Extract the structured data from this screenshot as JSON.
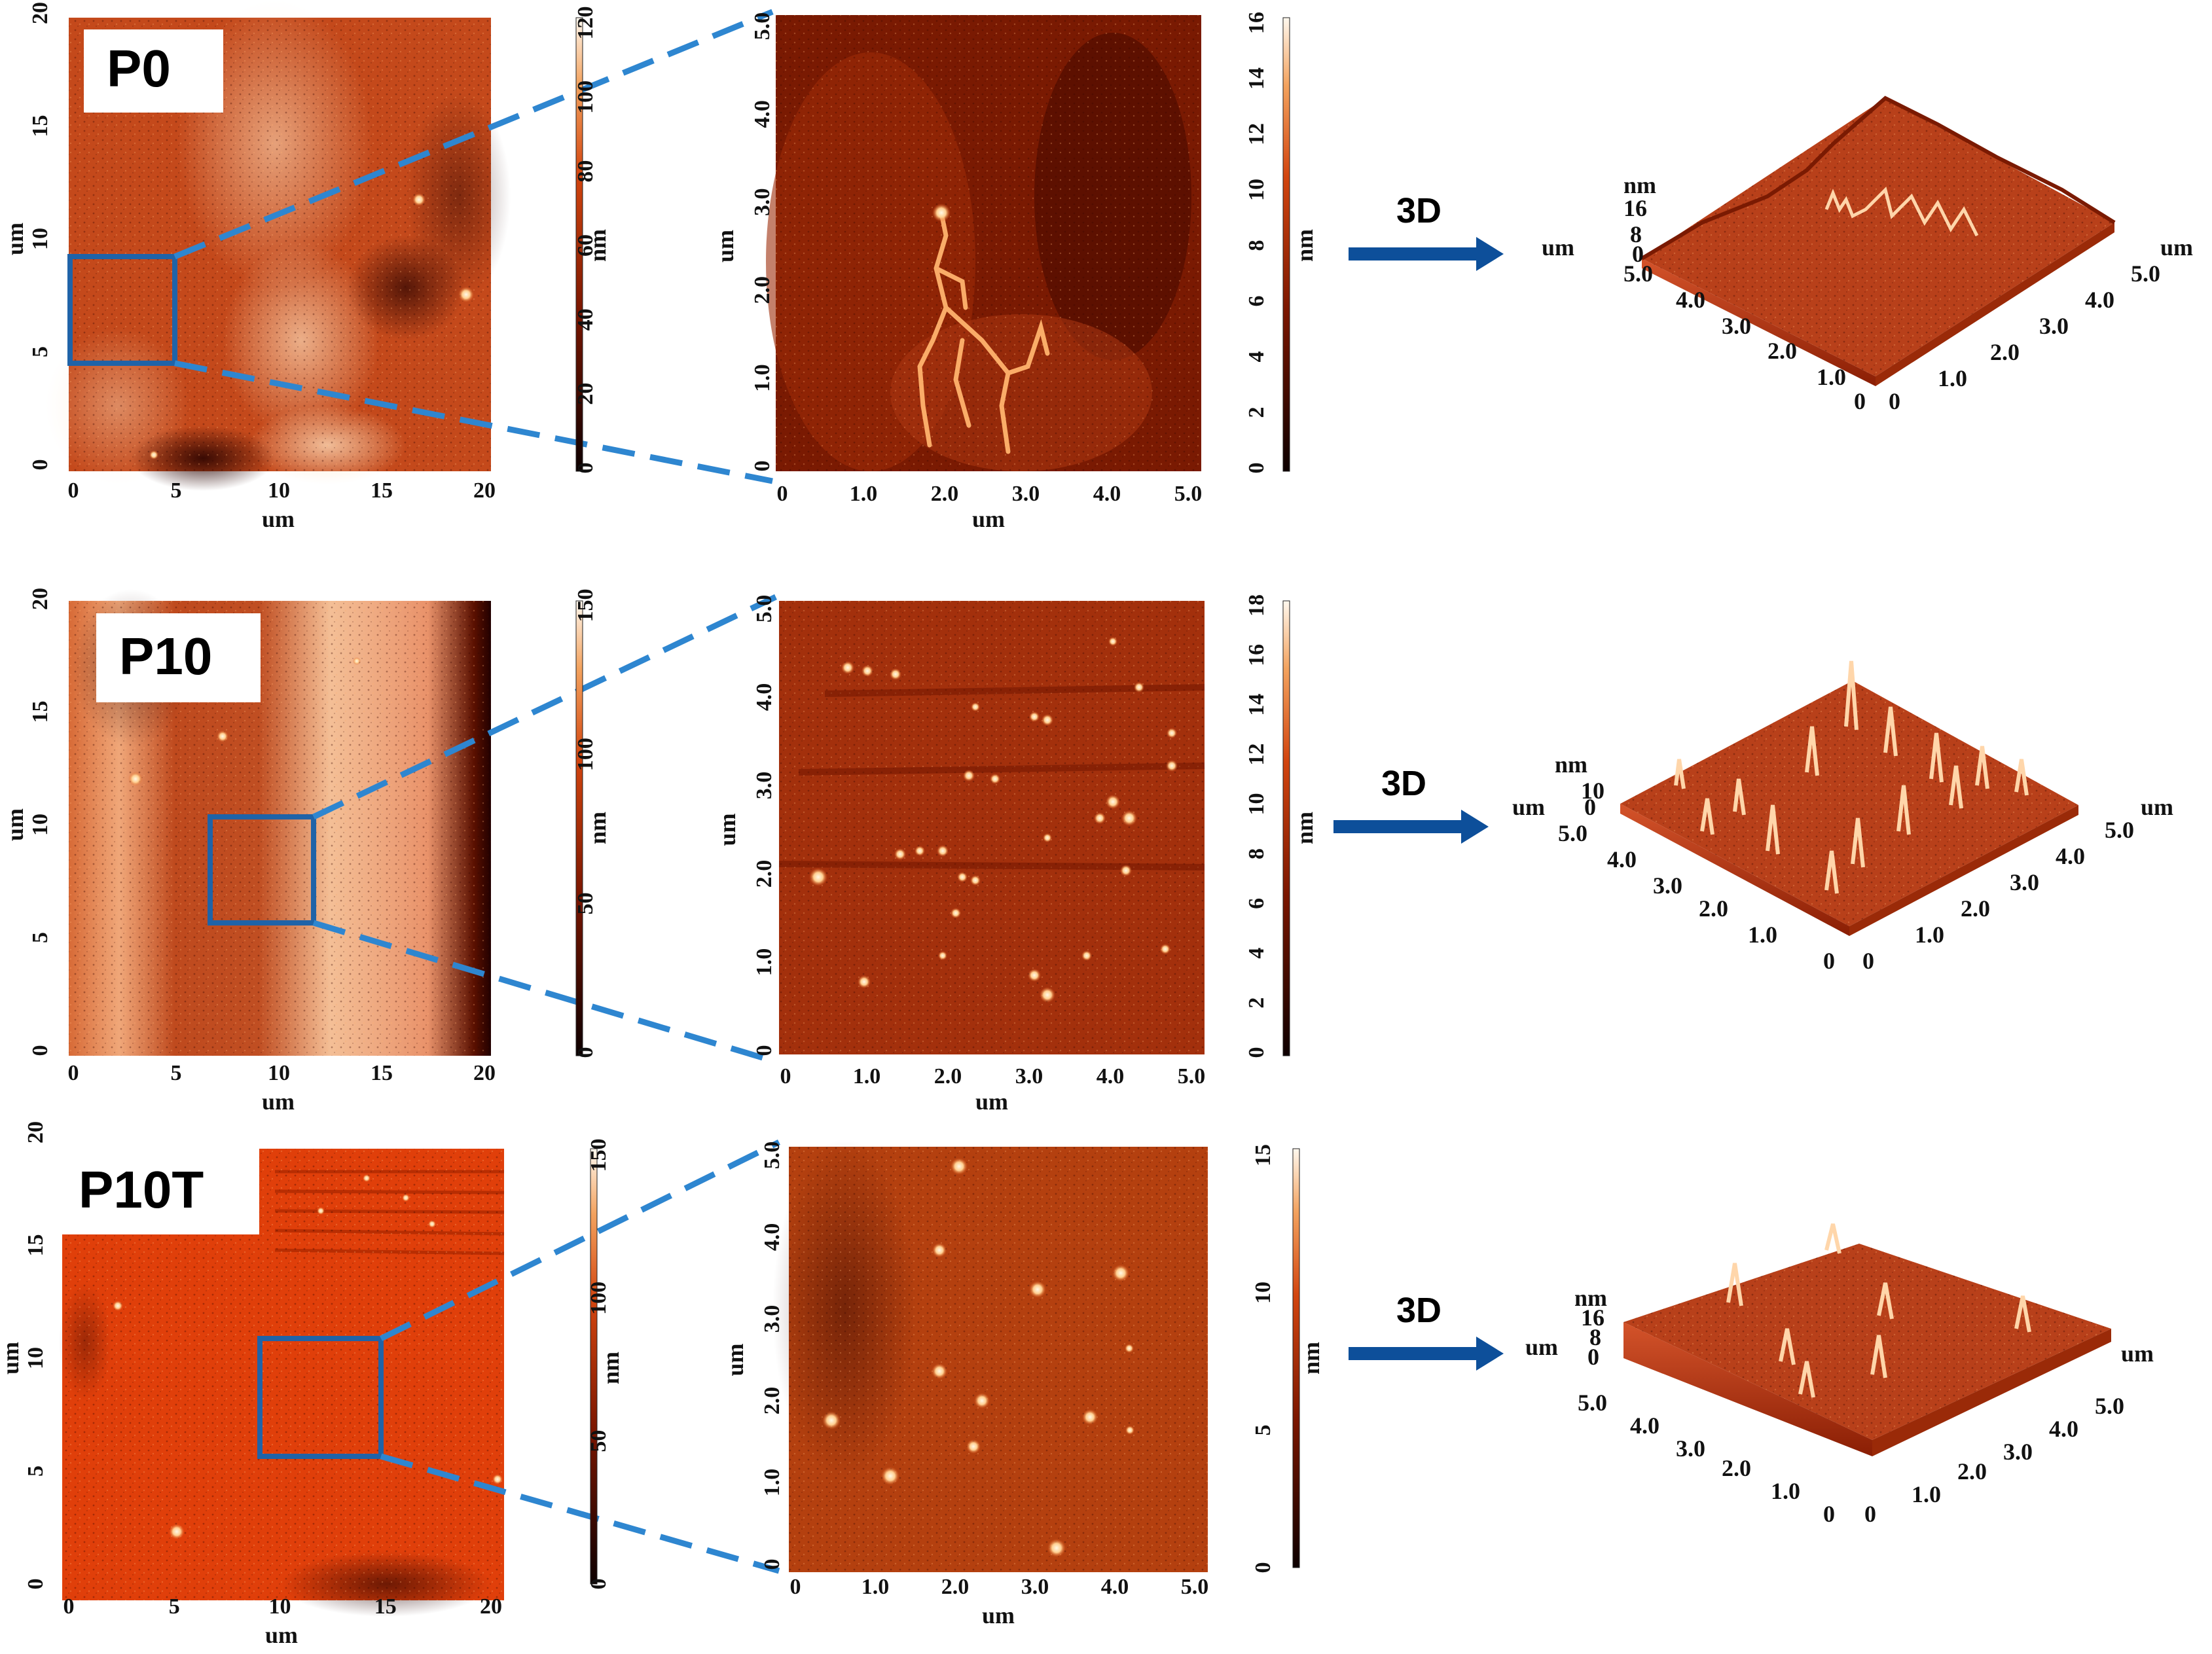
{
  "rows": [
    {
      "sample": "P0",
      "large": {
        "x_ticks": [
          "0",
          "5",
          "10",
          "15",
          "20"
        ],
        "y_ticks": [
          "0",
          "5",
          "10",
          "15",
          "20"
        ],
        "x_unit": "um",
        "y_unit": "um"
      },
      "large_bar": {
        "ticks": [
          "0",
          "20",
          "40",
          "60",
          "80",
          "100",
          "120"
        ],
        "unit": "nm"
      },
      "zoom": {
        "x_ticks": [
          "0",
          "1.0",
          "2.0",
          "3.0",
          "4.0",
          "5.0"
        ],
        "y_ticks": [
          "0",
          "1.0",
          "2.0",
          "3.0",
          "4.0",
          "5.0"
        ],
        "x_unit": "um",
        "y_unit": "um"
      },
      "zoom_bar": {
        "ticks": [
          "0",
          "2",
          "4",
          "6",
          "8",
          "10",
          "12",
          "14",
          "16"
        ],
        "unit": "nm"
      },
      "arrow_label": "3D",
      "surface": {
        "z_unit": "nm",
        "z_ticks": [
          "16",
          "8",
          "0"
        ],
        "left_unit": "um",
        "right_unit": "um",
        "left_ticks": [
          "5.0",
          "4.0",
          "3.0",
          "2.0",
          "1.0",
          "0"
        ],
        "right_ticks": [
          "0",
          "1.0",
          "2.0",
          "3.0",
          "4.0",
          "5.0"
        ]
      }
    },
    {
      "sample": "P10",
      "large": {
        "x_ticks": [
          "0",
          "5",
          "10",
          "15",
          "20"
        ],
        "y_ticks": [
          "0",
          "5",
          "10",
          "15",
          "20"
        ],
        "x_unit": "um",
        "y_unit": "um"
      },
      "large_bar": {
        "ticks": [
          "0",
          "50",
          "100",
          "150"
        ],
        "unit": "nm"
      },
      "zoom": {
        "x_ticks": [
          "0",
          "1.0",
          "2.0",
          "3.0",
          "4.0",
          "5.0"
        ],
        "y_ticks": [
          "0",
          "1.0",
          "2.0",
          "3.0",
          "4.0",
          "5.0"
        ],
        "x_unit": "um",
        "y_unit": "um"
      },
      "zoom_bar": {
        "ticks": [
          "0",
          "2",
          "4",
          "6",
          "8",
          "10",
          "12",
          "14",
          "16",
          "18"
        ],
        "unit": "nm"
      },
      "arrow_label": "3D",
      "surface": {
        "z_unit": "nm",
        "z_ticks": [
          "10",
          "0"
        ],
        "left_unit": "um",
        "right_unit": "um",
        "left_ticks": [
          "5.0",
          "4.0",
          "3.0",
          "2.0",
          "1.0",
          "0"
        ],
        "right_ticks": [
          "0",
          "1.0",
          "2.0",
          "3.0",
          "4.0",
          "5.0"
        ]
      }
    },
    {
      "sample": "P10T",
      "large": {
        "x_ticks": [
          "0",
          "5",
          "10",
          "15",
          "20"
        ],
        "y_ticks": [
          "0",
          "5",
          "10",
          "15",
          "20"
        ],
        "x_unit": "um",
        "y_unit": "um"
      },
      "large_bar": {
        "ticks": [
          "0",
          "50",
          "100",
          "150"
        ],
        "unit": "nm"
      },
      "zoom": {
        "x_ticks": [
          "0",
          "1.0",
          "2.0",
          "3.0",
          "4.0",
          "5.0"
        ],
        "y_ticks": [
          "0",
          "1.0",
          "2.0",
          "3.0",
          "4.0",
          "5.0"
        ],
        "x_unit": "um",
        "y_unit": "um"
      },
      "zoom_bar": {
        "ticks": [
          "0",
          "5",
          "10",
          "15"
        ],
        "unit": "nm"
      },
      "arrow_label": "3D",
      "surface": {
        "z_unit": "nm",
        "z_ticks": [
          "16",
          "8",
          "0"
        ],
        "left_unit": "um",
        "right_unit": "um",
        "left_ticks": [
          "5.0",
          "4.0",
          "3.0",
          "2.0",
          "1.0",
          "0"
        ],
        "right_ticks": [
          "0",
          "1.0",
          "2.0",
          "3.0",
          "4.0",
          "5.0"
        ]
      }
    }
  ],
  "colors": {
    "dashed_connector": "#2e86d0",
    "select_box": "#1f63a8",
    "arrow": "#0d4f9a",
    "colormap_dark": "#1a0000",
    "colormap_mid": "#c8340a",
    "colormap_light": "#fff6ea"
  }
}
